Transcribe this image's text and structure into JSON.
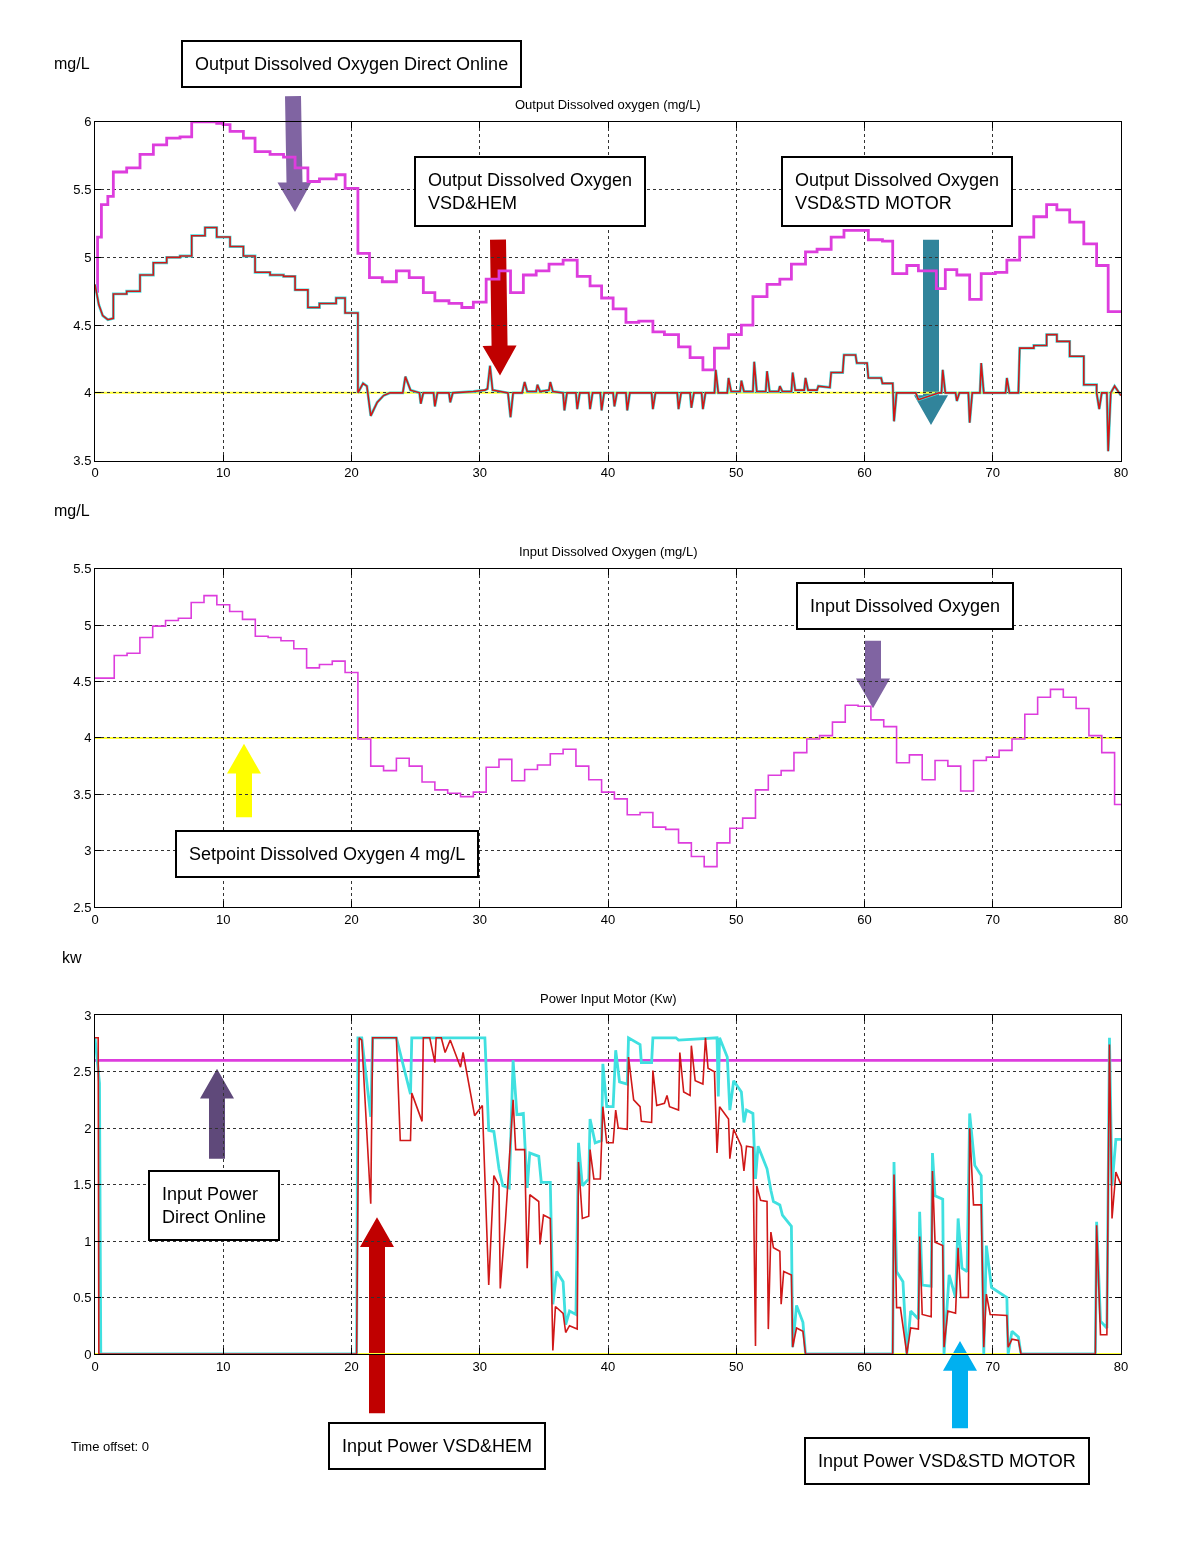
{
  "chart_data": [
    {
      "type": "line",
      "title": "Output Dissolved oxygen (mg/L)",
      "ylabel": "mg/L",
      "xlim": [
        0,
        80
      ],
      "xticks": [
        0,
        10,
        20,
        30,
        40,
        50,
        60,
        70,
        80
      ],
      "ylim": [
        3.5,
        6
      ],
      "yticks": [
        3.5,
        4,
        4.5,
        5,
        5.5,
        6
      ],
      "grid": true,
      "series": [
        {
          "type": "step",
          "color": "#dd3ddd",
          "x": [
            0,
            0.2,
            0.5,
            1.0,
            1.43,
            2.47,
            3.51,
            4.55,
            5.59,
            6.63,
            7.54,
            8.58,
            9.49,
            10.0,
            10.53,
            11.57,
            12.48,
            13.65,
            14.7,
            15.6,
            16.6,
            17.5,
            18.8,
            19.5,
            20.5,
            21.4,
            22.4,
            23.5,
            24.5,
            25.6,
            26.5,
            27.6,
            28.6,
            29.5,
            30.5,
            31.5,
            32.4,
            33.4,
            34.4,
            35.4,
            36.5,
            37.6,
            38.6,
            39.5,
            40.4,
            41.4,
            42.4,
            43.5,
            44.4,
            45.5,
            46.4,
            47.4,
            48.3,
            49.4,
            50.4,
            51.3,
            52.4,
            53.4,
            54.3,
            55.4,
            56.3,
            57.4,
            58.4,
            59.4,
            60.3,
            61.4,
            62.2,
            63.3,
            64.2,
            65.6,
            66.3,
            67.2,
            68.2,
            69.1,
            70.2,
            71.1,
            72.1,
            73.2,
            74.2,
            75.0,
            76.0,
            77.1,
            78.1,
            79.0,
            80
          ],
          "values": [
            4.75,
            5.15,
            5.39,
            5.45,
            5.63,
            5.66,
            5.76,
            5.83,
            5.88,
            5.89,
            6.0,
            6.0,
            5.99,
            5.98,
            5.93,
            5.88,
            5.78,
            5.76,
            5.74,
            5.66,
            5.56,
            5.58,
            5.61,
            5.51,
            5.03,
            4.85,
            4.82,
            4.9,
            4.85,
            4.74,
            4.68,
            4.66,
            4.63,
            4.67,
            4.84,
            4.9,
            4.74,
            4.87,
            4.9,
            4.95,
            4.98,
            4.86,
            4.79,
            4.7,
            4.62,
            4.52,
            4.53,
            4.45,
            4.43,
            4.34,
            4.26,
            4.17,
            4.33,
            4.43,
            4.5,
            4.71,
            4.8,
            4.84,
            4.95,
            5.04,
            5.06,
            5.15,
            5.2,
            5.2,
            5.13,
            5.12,
            4.88,
            4.94,
            4.9,
            4.77,
            4.91,
            4.87,
            4.69,
            4.88,
            4.89,
            4.98,
            5.15,
            5.3,
            5.39,
            5.35,
            5.26,
            5.1,
            4.94,
            4.6,
            4.6
          ]
        },
        {
          "type": "line",
          "color": "#40e0e0",
          "x": [
            0,
            0.3,
            0.6,
            1.0,
            1.43,
            1.43,
            2.47,
            2.47,
            3.51,
            3.51,
            4.55,
            4.55,
            5.59,
            5.59,
            6.63,
            6.63,
            7.54,
            7.54,
            8.58,
            8.58,
            9.49,
            9.49,
            10.53,
            10.53,
            11.57,
            11.57,
            12.48,
            12.48,
            13.65,
            13.65,
            14.7,
            14.7,
            15.6,
            15.6,
            16.6,
            16.6,
            17.5,
            17.5,
            18.8,
            18.8,
            19.5,
            19.5,
            20.5,
            20.5,
            20.9,
            21.2,
            21.5,
            22,
            22.5,
            23,
            24,
            24.2,
            24.6,
            25.3,
            25.4,
            25.6,
            26.4,
            26.5,
            26.7,
            27.6,
            27.7,
            27.9,
            29.5,
            30.4,
            30.6,
            30.8,
            31.0,
            32.2,
            32.4,
            32.6,
            33.3,
            33.5,
            33.7,
            34.4,
            34.5,
            34.7,
            35.4,
            35.5,
            35.7,
            36.5,
            36.6,
            36.8,
            37.5,
            37.6,
            37.8,
            38.5,
            38.6,
            38.8,
            39.4,
            39.5,
            39.7,
            40.4,
            40.5,
            40.7,
            41.4,
            41.5,
            41.7,
            43.4,
            43.5,
            43.7,
            45.4,
            45.5,
            45.7,
            46.4,
            46.5,
            46.7,
            47.3,
            47.4,
            47.6,
            48.3,
            48.4,
            48.6,
            49.3,
            49.4,
            49.6,
            50.3,
            50.4,
            50.6,
            51.3,
            51.4,
            51.6,
            52.3,
            52.4,
            52.6,
            53.3,
            53.4,
            53.6,
            54.3,
            54.4,
            54.6,
            55.3,
            55.4,
            55.6,
            56.3,
            56.4,
            57.3,
            57.4,
            58.3,
            58.4,
            59.3,
            59.4,
            60.2,
            60.3,
            61.3,
            61.4,
            62.2,
            62.3,
            62.5,
            64.0,
            64.2,
            65.8,
            66.0,
            66.1,
            66.3,
            67.1,
            67.2,
            67.4,
            68.1,
            68.2,
            68.4,
            69.0,
            69.1,
            69.3,
            71.0,
            71.1,
            71.3,
            72.0,
            72.1,
            73.2,
            73.2,
            74.2,
            74.2,
            75.0,
            75.0,
            76.0,
            76.0,
            77.1,
            77.1,
            78.1,
            78.1,
            78.3,
            78.5,
            78.9,
            79.0,
            79.2,
            79.5,
            80
          ],
          "values": [
            4.8,
            4.65,
            4.57,
            4.54,
            4.55,
            4.73,
            4.73,
            4.75,
            4.75,
            4.87,
            4.87,
            4.96,
            4.96,
            5.0,
            5.0,
            5.01,
            5.01,
            5.16,
            5.16,
            5.22,
            5.22,
            5.15,
            5.15,
            5.08,
            5.08,
            5.01,
            5.01,
            4.89,
            4.89,
            4.87,
            4.87,
            4.86,
            4.86,
            4.76,
            4.76,
            4.63,
            4.63,
            4.66,
            4.66,
            4.7,
            4.7,
            4.59,
            4.59,
            4.0,
            4.07,
            4.05,
            3.83,
            3.93,
            3.98,
            4.0,
            4.0,
            4.12,
            4.02,
            4.0,
            3.92,
            4.0,
            4.0,
            3.9,
            4.0,
            4.0,
            3.93,
            4.0,
            4.01,
            4.02,
            4.03,
            4.2,
            4.02,
            4.0,
            3.82,
            4.0,
            4.0,
            4.08,
            4.01,
            4.01,
            4.06,
            4.01,
            4.02,
            4.08,
            4.01,
            4.0,
            3.87,
            4.0,
            4.0,
            3.88,
            4.0,
            4.0,
            3.88,
            4.0,
            4.0,
            3.87,
            4.0,
            4.0,
            3.9,
            4.0,
            4.0,
            3.87,
            4.0,
            4.0,
            3.88,
            4.0,
            4.0,
            3.88,
            4.0,
            4.0,
            3.89,
            4.0,
            4.0,
            3.88,
            4.0,
            4.0,
            4.17,
            4.0,
            4.0,
            4.11,
            4.01,
            4.01,
            4.09,
            4.01,
            4.01,
            4.23,
            4.01,
            4.01,
            4.16,
            4.01,
            4.01,
            4.05,
            4.01,
            4.01,
            4.15,
            4.02,
            4.02,
            4.11,
            4.02,
            4.02,
            4.05,
            4.04,
            4.15,
            4.15,
            4.28,
            4.28,
            4.22,
            4.22,
            4.11,
            4.11,
            4.07,
            4.07,
            3.79,
            4.0,
            4.0,
            3.95,
            4.0,
            4.0,
            4.17,
            4.0,
            4.0,
            3.94,
            4.0,
            4.0,
            3.78,
            4.0,
            4.0,
            4.22,
            4.0,
            4.0,
            4.11,
            4.0,
            4.0,
            4.33,
            4.33,
            4.35,
            4.35,
            4.43,
            4.43,
            4.38,
            4.38,
            4.27,
            4.27,
            4.06,
            4.06,
            4.0,
            3.88,
            4.0,
            4.0,
            3.57,
            4.0,
            4.05,
            3.98
          ]
        },
        {
          "type": "line",
          "color": "#d01818",
          "x": [
            0,
            0.3,
            0.6,
            1.0,
            1.43,
            1.43,
            2.47,
            2.47,
            3.51,
            3.51,
            4.55,
            4.55,
            5.59,
            5.59,
            6.63,
            6.63,
            7.54,
            7.54,
            8.58,
            8.58,
            9.49,
            9.49,
            10.53,
            10.53,
            11.57,
            11.57,
            12.48,
            12.48,
            13.65,
            13.65,
            14.7,
            14.7,
            15.6,
            15.6,
            16.6,
            16.6,
            17.5,
            17.5,
            18.8,
            18.8,
            19.5,
            19.5,
            20.5,
            20.5,
            20.9,
            21.2,
            21.5,
            22,
            22.5,
            23,
            24,
            24.2,
            24.6,
            25.3,
            25.4,
            25.6,
            26.4,
            26.5,
            26.7,
            27.6,
            27.7,
            27.9,
            29.5,
            30.4,
            30.6,
            30.8,
            31.0,
            32.2,
            32.4,
            32.6,
            33.3,
            33.5,
            33.7,
            34.4,
            34.5,
            34.7,
            35.4,
            35.5,
            35.7,
            36.5,
            36.6,
            36.8,
            37.5,
            37.6,
            37.8,
            38.5,
            38.6,
            38.8,
            39.4,
            39.5,
            39.7,
            40.4,
            40.5,
            40.7,
            41.4,
            41.5,
            41.7,
            43.4,
            43.5,
            43.7,
            45.4,
            45.5,
            45.7,
            46.4,
            46.5,
            46.7,
            47.3,
            47.4,
            47.6,
            48.3,
            48.4,
            48.6,
            49.3,
            49.4,
            49.6,
            50.3,
            50.4,
            50.6,
            51.3,
            51.4,
            51.6,
            52.3,
            52.4,
            52.6,
            53.3,
            53.4,
            53.6,
            54.3,
            54.4,
            54.6,
            55.3,
            55.4,
            55.6,
            56.3,
            56.4,
            57.3,
            57.4,
            58.3,
            58.4,
            59.3,
            59.4,
            60.2,
            60.3,
            61.3,
            61.4,
            62.2,
            62.3,
            62.5,
            64.0,
            64.2,
            65.8,
            66.0,
            66.1,
            66.3,
            67.1,
            67.2,
            67.4,
            68.1,
            68.2,
            68.4,
            69.0,
            69.1,
            69.3,
            71.0,
            71.1,
            71.3,
            72.0,
            72.1,
            73.2,
            73.2,
            74.2,
            74.2,
            75.0,
            75.0,
            76.0,
            76.0,
            77.1,
            77.1,
            78.1,
            78.1,
            78.3,
            78.5,
            78.9,
            79.0,
            79.2,
            79.5,
            80
          ],
          "values": [
            4.8,
            4.65,
            4.57,
            4.54,
            4.55,
            4.73,
            4.73,
            4.75,
            4.75,
            4.87,
            4.87,
            4.96,
            4.96,
            5.0,
            5.0,
            5.01,
            5.01,
            5.16,
            5.16,
            5.22,
            5.22,
            5.15,
            5.15,
            5.08,
            5.08,
            5.01,
            5.01,
            4.89,
            4.89,
            4.87,
            4.87,
            4.86,
            4.86,
            4.76,
            4.76,
            4.63,
            4.63,
            4.66,
            4.66,
            4.7,
            4.7,
            4.59,
            4.59,
            4.0,
            4.07,
            4.05,
            3.83,
            3.93,
            3.98,
            4.0,
            4.0,
            4.12,
            4.02,
            4.0,
            3.92,
            4.0,
            4.0,
            3.9,
            4.0,
            4.0,
            3.93,
            4.0,
            4.01,
            4.02,
            4.03,
            4.2,
            4.02,
            4.0,
            3.82,
            4.0,
            4.0,
            4.08,
            4.01,
            4.01,
            4.06,
            4.01,
            4.02,
            4.08,
            4.01,
            4.0,
            3.87,
            4.0,
            4.0,
            3.88,
            4.0,
            4.0,
            3.88,
            4.0,
            4.0,
            3.87,
            4.0,
            4.0,
            3.9,
            4.0,
            4.0,
            3.87,
            4.0,
            4.0,
            3.88,
            4.0,
            4.0,
            3.88,
            4.0,
            4.0,
            3.89,
            4.0,
            4.0,
            3.88,
            4.0,
            4.0,
            4.17,
            4.0,
            4.0,
            4.11,
            4.01,
            4.01,
            4.09,
            4.01,
            4.01,
            4.23,
            4.01,
            4.01,
            4.16,
            4.01,
            4.01,
            4.05,
            4.01,
            4.01,
            4.15,
            4.02,
            4.02,
            4.11,
            4.02,
            4.02,
            4.05,
            4.04,
            4.15,
            4.15,
            4.28,
            4.28,
            4.22,
            4.22,
            4.11,
            4.11,
            4.07,
            4.07,
            3.79,
            4.0,
            4.0,
            3.95,
            4.0,
            4.0,
            4.17,
            4.0,
            4.0,
            3.94,
            4.0,
            4.0,
            3.78,
            4.0,
            4.0,
            4.22,
            4.0,
            4.0,
            4.11,
            4.0,
            4.0,
            4.33,
            4.33,
            4.35,
            4.35,
            4.43,
            4.43,
            4.38,
            4.38,
            4.27,
            4.27,
            4.06,
            4.06,
            4.0,
            3.88,
            4.0,
            4.0,
            3.57,
            4.0,
            4.05,
            3.98
          ]
        }
      ],
      "ref_lines": [
        {
          "axis": "y",
          "value": 4,
          "color": "#ffff33"
        }
      ],
      "annotations": [
        "Output Dissolved Oxygen Direct Online",
        "Output Dissolved Oxygen\nVSD&HEM",
        "Output Dissolved Oxygen\nVSD&STD MOTOR"
      ]
    },
    {
      "type": "step",
      "title": "Input Dissolved Oxygen (mg/L)",
      "ylabel": "mg/L",
      "xlim": [
        0,
        80
      ],
      "xticks": [
        0,
        10,
        20,
        30,
        40,
        50,
        60,
        70,
        80
      ],
      "ylim": [
        2.5,
        5.5
      ],
      "yticks": [
        2.5,
        3,
        3.5,
        4,
        4.5,
        5,
        5.5
      ],
      "grid": true,
      "series": [
        {
          "color": "#dd3ddd",
          "x": [
            0,
            1.5,
            2.5,
            3.5,
            4.5,
            5.5,
            6.5,
            7.5,
            8.5,
            9.5,
            10.5,
            11.5,
            12.5,
            13.5,
            14.5,
            15.5,
            16.5,
            17.5,
            18.5,
            19.5,
            20.5,
            21.5,
            22.5,
            23.5,
            24.5,
            25.5,
            26.5,
            27.5,
            28.5,
            29.5,
            30.5,
            31.5,
            32.5,
            33.5,
            34.5,
            35.5,
            36.5,
            37.5,
            38.5,
            39.5,
            40.5,
            41.5,
            42.5,
            43.5,
            44.5,
            45.5,
            46.5,
            47.5,
            48.5,
            49.5,
            50.5,
            51.5,
            52.5,
            53.5,
            54.5,
            55.5,
            56.5,
            57.5,
            58.5,
            59.5,
            60.5,
            61.5,
            62.5,
            63.5,
            64.5,
            65.5,
            66.5,
            67.5,
            68.5,
            69.5,
            70.5,
            71.5,
            72.5,
            73.5,
            74.5,
            75.5,
            76.5,
            77.5,
            78.5,
            79.5,
            80
          ],
          "values": [
            4.53,
            4.73,
            4.75,
            4.89,
            4.99,
            5.04,
            5.06,
            5.2,
            5.26,
            5.18,
            5.12,
            5.05,
            4.9,
            4.89,
            4.86,
            4.79,
            4.62,
            4.65,
            4.68,
            4.58,
            3.99,
            3.75,
            3.71,
            3.82,
            3.75,
            3.61,
            3.54,
            3.51,
            3.48,
            3.52,
            3.74,
            3.81,
            3.62,
            3.72,
            3.76,
            3.86,
            3.9,
            3.75,
            3.63,
            3.52,
            3.46,
            3.32,
            3.34,
            3.21,
            3.19,
            3.07,
            2.95,
            2.86,
            3.07,
            3.2,
            3.29,
            3.54,
            3.67,
            3.71,
            3.87,
            3.99,
            4.02,
            4.14,
            4.29,
            4.28,
            4.16,
            4.1,
            3.78,
            3.85,
            3.63,
            3.8,
            3.75,
            3.53,
            3.8,
            3.83,
            3.89,
            3.99,
            4.21,
            4.36,
            4.43,
            4.36,
            4.26,
            4.02,
            3.87,
            3.41,
            3.41
          ]
        }
      ],
      "ref_lines": [
        {
          "axis": "y",
          "value": 4,
          "color": "#ffff33"
        }
      ],
      "annotations": [
        "Input Dissolved Oxygen",
        "Setpoint Dissolved Oxygen 4 mg/L"
      ]
    },
    {
      "type": "line",
      "title": "Power Input Motor (Kw)",
      "ylabel": "kw",
      "xlim": [
        0,
        80
      ],
      "xticks": [
        0,
        10,
        20,
        30,
        40,
        50,
        60,
        70,
        80
      ],
      "ylim": [
        0,
        3
      ],
      "yticks": [
        0,
        0.5,
        1,
        1.5,
        2,
        2.5,
        3
      ],
      "grid": true,
      "series": [
        {
          "color": "#dd3ddd",
          "x": [
            0,
            80
          ],
          "values": [
            2.6,
            2.6
          ]
        },
        {
          "color": "#40e0e0",
          "x": [
            0,
            0.35,
            0.45,
            20.4,
            20.5,
            20.8,
            21.5,
            21.65,
            23.5,
            24.6,
            24.7,
            30.4,
            30.7,
            31.1,
            31.5,
            31.8,
            32.3,
            32.6,
            32.9,
            33.4,
            33.7,
            33.9,
            34.6,
            34.8,
            35.5,
            35.7,
            36.0,
            36.5,
            36.7,
            37.0,
            37.5,
            37.7,
            38.0,
            38.5,
            38.6,
            39.0,
            39.5,
            39.6,
            39.9,
            40.4,
            40.6,
            40.9,
            41.5,
            41.6,
            42.5,
            42.6,
            43.4,
            43.5,
            45.3,
            45.5,
            48.5,
            48.6,
            48.7,
            49.3,
            49.5,
            49.8,
            50.4,
            50.6,
            50.8,
            51.3,
            51.5,
            51.7,
            52.4,
            52.7,
            52.9,
            53.4,
            53.6,
            54.3,
            54.4,
            54.7,
            55.2,
            55.4,
            62.2,
            62.3,
            62.5,
            63.0,
            63.3,
            63.6,
            64.2,
            64.3,
            64.5,
            65.2,
            65.3,
            65.5,
            66.1,
            66.2,
            66.6,
            67.1,
            67.3,
            67.6,
            68.0,
            68.2,
            68.6,
            69.1,
            69.3,
            69.5,
            69.9,
            71.1,
            71.2,
            71.5,
            72.0,
            72.2,
            78.0,
            78.1,
            78.4,
            78.9,
            79.1,
            79.3,
            79.6,
            80
          ],
          "values": [
            2.8,
            2.4,
            0,
            0,
            2.8,
            2.8,
            2.1,
            2.8,
            2.8,
            2.3,
            2.8,
            2.8,
            1.98,
            1.97,
            1.64,
            1.49,
            1.47,
            2.6,
            2.12,
            2.13,
            1.47,
            1.78,
            1.75,
            1.52,
            1.52,
            0.44,
            0.73,
            0.64,
            0.26,
            0.38,
            0.35,
            1.87,
            1.49,
            1.55,
            2.08,
            1.87,
            1.89,
            2.57,
            2.19,
            2.19,
            2.69,
            2.41,
            2.39,
            2.8,
            2.74,
            2.58,
            2.58,
            2.8,
            2.8,
            2.78,
            2.8,
            2.28,
            2.8,
            2.63,
            2.16,
            2.42,
            2.32,
            2.05,
            2.16,
            2.13,
            1.55,
            1.84,
            1.64,
            1.45,
            1.35,
            1.32,
            1.23,
            1.13,
            0.06,
            0.43,
            0.28,
            0,
            0,
            1.7,
            0.73,
            0.64,
            0,
            0.38,
            0.31,
            1.26,
            0.61,
            0.6,
            1.78,
            1.4,
            1.37,
            0,
            0.7,
            0.5,
            1.2,
            0.76,
            0.73,
            2.13,
            1.67,
            1.58,
            0,
            0.96,
            0.59,
            0.5,
            0,
            0.2,
            0.15,
            0,
            0,
            1.17,
            0.29,
            0.23,
            2.8,
            1.49,
            1.9,
            1.9
          ]
        },
        {
          "color": "#d01818",
          "x": [
            0,
            0.25,
            0.3,
            20.4,
            20.6,
            20.8,
            21.5,
            21.65,
            23.5,
            23.8,
            24.6,
            24.7,
            25.5,
            25.6,
            26.1,
            26.5,
            26.6,
            27.0,
            27.3,
            27.7,
            28.5,
            28.7,
            29.6,
            30.2,
            30.7,
            31.1,
            31.5,
            31.6,
            32.0,
            32.6,
            32.8,
            33.5,
            33.7,
            33.9,
            34.6,
            34.7,
            34.97,
            35.5,
            35.7,
            35.9,
            36.5,
            36.7,
            37.0,
            37.6,
            37.7,
            38.0,
            38.5,
            38.6,
            38.9,
            39.4,
            39.6,
            39.9,
            40.4,
            40.6,
            40.8,
            41.5,
            41.6,
            42.0,
            42.5,
            42.6,
            43.4,
            43.5,
            43.8,
            44.4,
            44.6,
            44.8,
            45.5,
            45.6,
            45.9,
            46.4,
            46.5,
            46.8,
            47.4,
            47.6,
            47.8,
            48.3,
            48.5,
            48.7,
            49.4,
            49.5,
            49.8,
            50.4,
            50.6,
            50.8,
            51.3,
            51.5,
            51.6,
            51.9,
            52.4,
            52.5,
            52.7,
            52.9,
            53.4,
            53.5,
            53.7,
            54.3,
            54.4,
            54.7,
            55.2,
            55.4,
            62.2,
            62.3,
            62.5,
            62.8,
            63.3,
            63.6,
            64.2,
            64.3,
            64.5,
            65.2,
            65.3,
            65.5,
            66.1,
            66.2,
            66.5,
            67.1,
            67.3,
            67.5,
            68.1,
            68.2,
            68.5,
            69.1,
            69.3,
            69.5,
            69.8,
            71.1,
            71.2,
            71.5,
            72.0,
            72.2,
            78.0,
            78.1,
            78.4,
            78.9,
            79.1,
            79.3,
            79.6,
            80
          ],
          "values": [
            2.8,
            2.8,
            0,
            0,
            2.8,
            2.78,
            1.33,
            2.8,
            2.8,
            1.89,
            1.89,
            2.31,
            2.06,
            2.8,
            2.8,
            2.58,
            2.8,
            2.8,
            2.67,
            2.78,
            2.54,
            2.67,
            2.11,
            2.2,
            0.61,
            1.58,
            1.49,
            0.58,
            1.17,
            2.25,
            1.81,
            1.81,
            0.76,
            1.41,
            1.35,
            0.97,
            1.23,
            1.2,
            0.03,
            0.42,
            0.36,
            0.19,
            0.25,
            0.22,
            1.7,
            1.2,
            1.22,
            1.81,
            1.55,
            1.55,
            2.19,
            1.87,
            1.87,
            2.16,
            2.0,
            1.99,
            2.63,
            2.25,
            2.19,
            2.06,
            2.05,
            2.51,
            2.2,
            2.22,
            2.29,
            2.19,
            2.16,
            2.67,
            2.32,
            2.29,
            2.73,
            2.42,
            2.39,
            2.8,
            2.53,
            2.5,
            1.78,
            2.19,
            2.08,
            1.73,
            1.99,
            1.84,
            1.62,
            1.84,
            1.83,
            0.07,
            1.49,
            1.36,
            1.35,
            0.22,
            1.08,
            0.94,
            0.91,
            0.44,
            0.73,
            0.7,
            0.06,
            0.23,
            0.2,
            0,
            0,
            1.59,
            0.41,
            0.41,
            0,
            0.23,
            0.22,
            1.04,
            0.35,
            0.33,
            1.62,
            0.99,
            0.96,
            0.06,
            0.38,
            0.36,
            0.94,
            0.5,
            0.5,
            2.0,
            1.32,
            1.32,
            0.06,
            0.53,
            0.35,
            0.34,
            0.06,
            0.13,
            0.12,
            0,
            0,
            1.14,
            0.17,
            0.17,
            2.74,
            1.2,
            1.61,
            1.5
          ]
        }
      ],
      "ref_lines": [
        {
          "axis": "y",
          "value": 0,
          "color": "#ffff33"
        }
      ],
      "annotations": [
        "Input Power\nDirect Online",
        "Input Power VSD&HEM",
        "Input Power VSD&STD MOTOR",
        "Time offset: 0"
      ]
    }
  ]
}
